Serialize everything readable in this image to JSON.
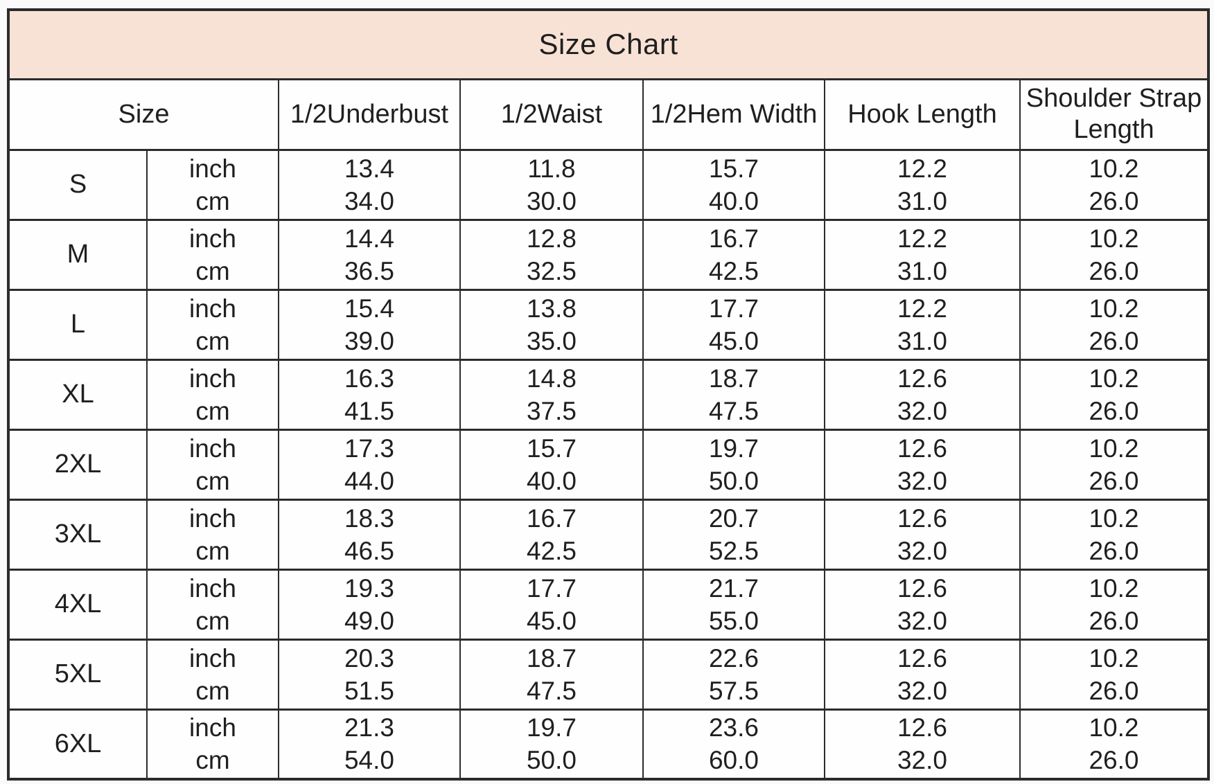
{
  "chart_data": {
    "type": "table",
    "title": "Size Chart",
    "columns": [
      "Size",
      "1/2Underbust",
      "1/2Waist",
      "1/2Hem Width",
      "Hook Length",
      "Shoulder Strap Length"
    ],
    "units": [
      "inch",
      "cm"
    ],
    "rows": [
      {
        "size": "S",
        "inch": [
          "13.4",
          "11.8",
          "15.7",
          "12.2",
          "10.2"
        ],
        "cm": [
          "34.0",
          "30.0",
          "40.0",
          "31.0",
          "26.0"
        ]
      },
      {
        "size": "M",
        "inch": [
          "14.4",
          "12.8",
          "16.7",
          "12.2",
          "10.2"
        ],
        "cm": [
          "36.5",
          "32.5",
          "42.5",
          "31.0",
          "26.0"
        ]
      },
      {
        "size": "L",
        "inch": [
          "15.4",
          "13.8",
          "17.7",
          "12.2",
          "10.2"
        ],
        "cm": [
          "39.0",
          "35.0",
          "45.0",
          "31.0",
          "26.0"
        ]
      },
      {
        "size": "XL",
        "inch": [
          "16.3",
          "14.8",
          "18.7",
          "12.6",
          "10.2"
        ],
        "cm": [
          "41.5",
          "37.5",
          "47.5",
          "32.0",
          "26.0"
        ]
      },
      {
        "size": "2XL",
        "inch": [
          "17.3",
          "15.7",
          "19.7",
          "12.6",
          "10.2"
        ],
        "cm": [
          "44.0",
          "40.0",
          "50.0",
          "32.0",
          "26.0"
        ]
      },
      {
        "size": "3XL",
        "inch": [
          "18.3",
          "16.7",
          "20.7",
          "12.6",
          "10.2"
        ],
        "cm": [
          "46.5",
          "42.5",
          "52.5",
          "32.0",
          "26.0"
        ]
      },
      {
        "size": "4XL",
        "inch": [
          "19.3",
          "17.7",
          "21.7",
          "12.6",
          "10.2"
        ],
        "cm": [
          "49.0",
          "45.0",
          "55.0",
          "32.0",
          "26.0"
        ]
      },
      {
        "size": "5XL",
        "inch": [
          "20.3",
          "18.7",
          "22.6",
          "12.6",
          "10.2"
        ],
        "cm": [
          "51.5",
          "47.5",
          "57.5",
          "32.0",
          "26.0"
        ]
      },
      {
        "size": "6XL",
        "inch": [
          "21.3",
          "19.7",
          "23.6",
          "12.6",
          "10.2"
        ],
        "cm": [
          "54.0",
          "50.0",
          "60.0",
          "32.0",
          "26.0"
        ]
      }
    ]
  },
  "colors": {
    "title_bg": "#f8e2d6",
    "border": "#2b2b2b",
    "text": "#1f1f1f"
  }
}
